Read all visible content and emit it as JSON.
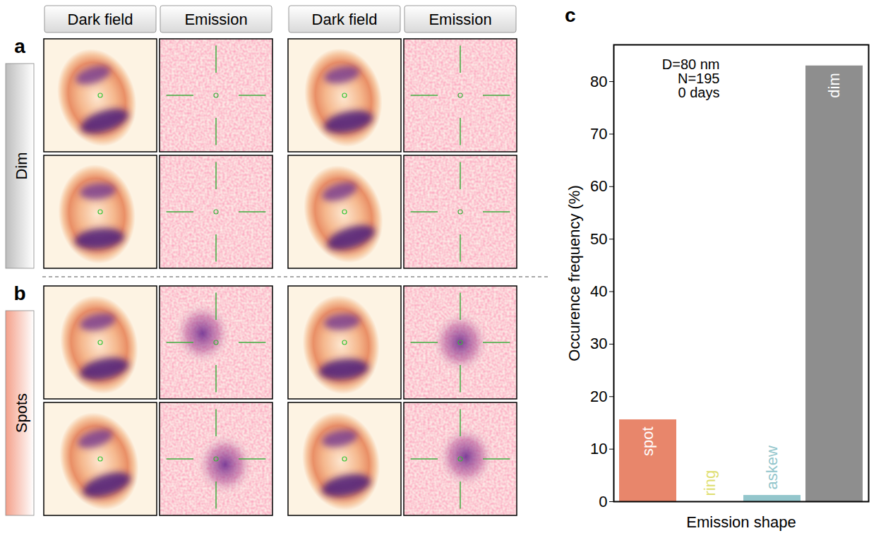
{
  "chart_data": {
    "type": "bar",
    "categories": [
      "spot",
      "ring",
      "askew",
      "dim"
    ],
    "values": [
      15.6,
      0,
      1.2,
      83
    ],
    "colors": [
      "#e8866b",
      "#dede6e",
      "#93c6cc",
      "#8e8e8e"
    ],
    "x_label": "Emission shape",
    "y_label": "Occurence frequency (%)",
    "annotations": [
      "D=80 nm",
      "N=195",
      "0 days"
    ],
    "ylim": [
      0,
      87
    ],
    "yticks": [
      0,
      10,
      20,
      30,
      40,
      50,
      60,
      70,
      80
    ],
    "grid": false,
    "tick_labels": "y"
  },
  "chart_letter": "c",
  "image_grid": {
    "column_headers": [
      "Dark field",
      "Emission",
      "Dark field",
      "Emission"
    ],
    "panels": [
      {
        "letter": "a",
        "label": "Dim"
      },
      {
        "letter": "b",
        "label": "Spots"
      }
    ]
  }
}
